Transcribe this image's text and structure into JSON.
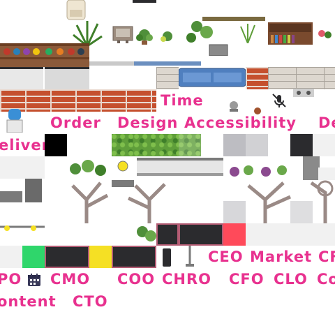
{
  "tileset": {
    "labels": {
      "time": "Time",
      "order": "Order",
      "design": "Design",
      "accessibility": "Accessibility",
      "de": "De",
      "deliver": "eliver",
      "ceo": "CEO",
      "market": "Market",
      "cp": "CF",
      "po": "PO",
      "cmo": "CMO",
      "coo": "COO",
      "chro": "CHRO",
      "cfo": "CFO",
      "clo": "CLO",
      "co": "Co",
      "content": "ontent",
      "cto": "CTO"
    },
    "colors": {
      "label": "#e8318f",
      "brick": "#c5502e",
      "green_tile": "#2fd66b",
      "yellow_tile": "#f5e024",
      "red_tile": "#ff4a5a",
      "dark_tile": "#2b2b2e",
      "sofa": "#4f7fbf"
    },
    "icons": [
      "armchair-icon",
      "potted-plant-icon",
      "tv-icon",
      "bookshelf-icon",
      "water-cooler-icon",
      "mic-off-icon",
      "calendar-icon",
      "bare-tree-icon",
      "street-lamp-icon",
      "sofa-icon",
      "stove-icon"
    ]
  }
}
